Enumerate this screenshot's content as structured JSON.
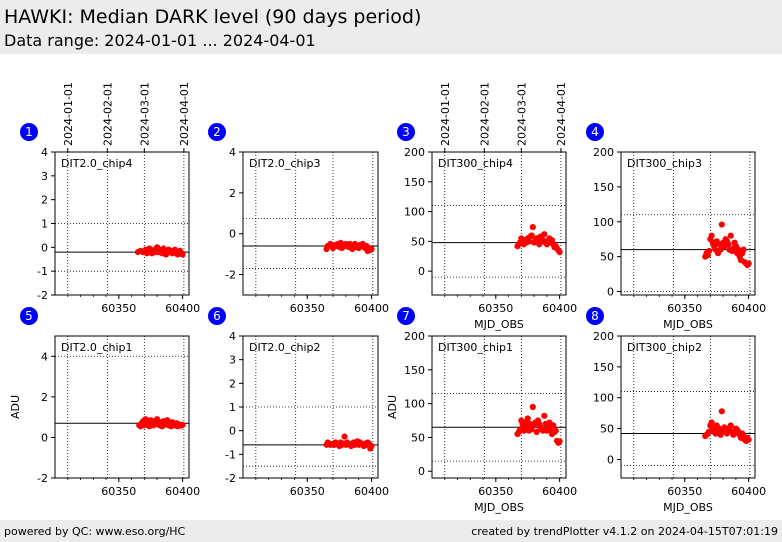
{
  "header": {
    "title": "HAWKI: Median DARK level (90 days period)",
    "subtitle": "Data range: 2024-01-01 ... 2024-04-01"
  },
  "footer": {
    "left": "powered by QC: www.eso.org/HC",
    "right": "created by trendPlotter v4.1.2 on 2024-04-15T07:01:19"
  },
  "date_ticks": {
    "labels": [
      "2024-01-01",
      "2024-02-01",
      "2024-03-01",
      "2024-04-01"
    ],
    "mjd": [
      60310,
      60341,
      60370,
      60401
    ]
  },
  "colors": {
    "marker": "#ff0000",
    "badge": "#0000ff",
    "ref_line": "#000000"
  },
  "chart_data": [
    {
      "type": "scatter",
      "index": "1",
      "label": "DIT2.0_chip4",
      "xlim": [
        60300,
        60405
      ],
      "ylim": [
        -2,
        4
      ],
      "yticks": [
        -2,
        -1,
        0,
        1,
        2,
        3,
        4
      ],
      "xticks": [
        60350,
        60400
      ],
      "ref": -0.2,
      "upper": 1.0,
      "lower": -1.0,
      "xlabel": "",
      "ylabel": "",
      "show_dates": true,
      "x": [
        60365,
        60367,
        60369,
        60371,
        60372,
        60373,
        60374,
        60375,
        60376,
        60377,
        60378,
        60379,
        60380,
        60381,
        60382,
        60383,
        60384,
        60385,
        60386,
        60387,
        60388,
        60389,
        60390,
        60391,
        60392,
        60393,
        60394,
        60395,
        60396,
        60397,
        60398,
        60399,
        60400
      ],
      "y": [
        -0.2,
        -0.15,
        -0.2,
        -0.1,
        -0.25,
        -0.15,
        -0.05,
        -0.2,
        -0.25,
        -0.2,
        -0.1,
        -0.2,
        0.0,
        -0.2,
        -0.1,
        -0.15,
        -0.25,
        -0.05,
        -0.2,
        -0.3,
        -0.15,
        -0.1,
        -0.2,
        -0.15,
        -0.25,
        -0.2,
        -0.1,
        -0.2,
        -0.3,
        -0.2,
        -0.15,
        -0.25,
        -0.3
      ]
    },
    {
      "type": "scatter",
      "index": "2",
      "label": "DIT2.0_chip3",
      "xlim": [
        60300,
        60405
      ],
      "ylim": [
        -3,
        4
      ],
      "yticks": [
        -2,
        0,
        2,
        4
      ],
      "xticks": [
        60350,
        60400
      ],
      "ref": -0.6,
      "upper": 0.75,
      "lower": -1.7,
      "xlabel": "",
      "ylabel": "",
      "show_dates": false,
      "x": [
        60365,
        60366,
        60368,
        60370,
        60372,
        60373,
        60374,
        60375,
        60376,
        60377,
        60378,
        60379,
        60380,
        60381,
        60382,
        60383,
        60384,
        60385,
        60386,
        60387,
        60388,
        60389,
        60390,
        60391,
        60392,
        60393,
        60394,
        60395,
        60396,
        60397,
        60398,
        60399,
        60400
      ],
      "y": [
        -0.75,
        -0.6,
        -0.5,
        -0.7,
        -0.55,
        -0.6,
        -0.5,
        -0.65,
        -0.45,
        -0.7,
        -0.55,
        -0.6,
        -0.5,
        -0.55,
        -0.65,
        -0.5,
        -0.6,
        -0.75,
        -0.55,
        -0.5,
        -0.65,
        -0.6,
        -0.7,
        -0.55,
        -0.6,
        -0.5,
        -0.65,
        -0.7,
        -0.6,
        -0.85,
        -0.7,
        -0.8,
        -0.75
      ]
    },
    {
      "type": "scatter",
      "index": "3",
      "label": "DIT300_chip4",
      "xlim": [
        60300,
        60405
      ],
      "ylim": [
        -40,
        200
      ],
      "yticks": [
        0,
        50,
        100,
        150,
        200
      ],
      "xticks": [
        60350,
        60400
      ],
      "ref": 48,
      "upper": 110,
      "lower": -10,
      "xlabel": "MJD_OBS",
      "ylabel": "",
      "show_dates": true,
      "x": [
        60367,
        60368,
        60369,
        60370,
        60371,
        60372,
        60373,
        60374,
        60375,
        60376,
        60377,
        60378,
        60379,
        60380,
        60381,
        60382,
        60383,
        60384,
        60385,
        60386,
        60387,
        60388,
        60389,
        60390,
        60391,
        60392,
        60393,
        60394,
        60395,
        60396,
        60397,
        60398,
        60399,
        60400
      ],
      "y": [
        42,
        45,
        48,
        55,
        50,
        45,
        52,
        48,
        55,
        50,
        58,
        60,
        74,
        48,
        52,
        55,
        50,
        45,
        58,
        50,
        52,
        62,
        48,
        45,
        50,
        55,
        48,
        52,
        45,
        40,
        42,
        38,
        35,
        32
      ]
    },
    {
      "type": "scatter",
      "index": "4",
      "label": "DIT300_chip3",
      "xlim": [
        60300,
        60405
      ],
      "ylim": [
        -5,
        200
      ],
      "yticks": [
        0,
        50,
        100,
        150,
        200
      ],
      "xticks": [
        60350,
        60400
      ],
      "ref": 60,
      "upper": 110,
      "lower": 0,
      "xlabel": "MJD_OBS",
      "ylabel": "",
      "show_dates": false,
      "x": [
        60366,
        60367,
        60368,
        60369,
        60370,
        60371,
        60372,
        60373,
        60374,
        60375,
        60376,
        60377,
        60378,
        60379,
        60380,
        60381,
        60382,
        60383,
        60384,
        60385,
        60386,
        60387,
        60388,
        60389,
        60390,
        60391,
        60392,
        60393,
        60394,
        60395,
        60396,
        60397,
        60398,
        60399,
        60400
      ],
      "y": [
        50,
        55,
        52,
        58,
        75,
        80,
        70,
        65,
        60,
        72,
        55,
        68,
        60,
        96,
        70,
        65,
        75,
        72,
        68,
        60,
        80,
        58,
        62,
        70,
        65,
        55,
        60,
        50,
        45,
        55,
        60,
        42,
        40,
        38,
        40
      ]
    },
    {
      "type": "scatter",
      "index": "5",
      "label": "DIT2.0_chip1",
      "xlim": [
        60300,
        60405
      ],
      "ylim": [
        -2,
        5
      ],
      "yticks": [
        -2,
        0,
        2,
        4
      ],
      "xticks": [
        60350,
        60400
      ],
      "ref": 0.7,
      "upper": 4.0,
      "lower": -2.0,
      "xlabel": "",
      "ylabel": "ADU",
      "show_dates": false,
      "x": [
        60366,
        60367,
        60368,
        60369,
        60370,
        60371,
        60372,
        60373,
        60374,
        60375,
        60376,
        60377,
        60378,
        60379,
        60380,
        60381,
        60382,
        60383,
        60384,
        60385,
        60386,
        60387,
        60388,
        60389,
        60390,
        60391,
        60392,
        60393,
        60394,
        60395,
        60396,
        60397,
        60398,
        60399,
        60400
      ],
      "y": [
        0.6,
        0.55,
        0.7,
        0.8,
        0.6,
        0.9,
        0.65,
        0.75,
        0.55,
        0.85,
        0.7,
        0.6,
        0.8,
        0.65,
        0.9,
        0.7,
        0.6,
        0.75,
        0.55,
        0.8,
        0.7,
        0.65,
        0.85,
        0.6,
        0.7,
        0.55,
        0.75,
        0.65,
        0.6,
        0.7,
        0.55,
        0.65,
        0.6,
        0.58,
        0.62
      ]
    },
    {
      "type": "scatter",
      "index": "6",
      "label": "DIT2.0_chip2",
      "xlim": [
        60300,
        60405
      ],
      "ylim": [
        -2,
        4
      ],
      "yticks": [
        -2,
        -1,
        0,
        1,
        2,
        3,
        4
      ],
      "xticks": [
        60350,
        60400
      ],
      "ref": -0.6,
      "upper": 1.0,
      "lower": -1.5,
      "xlabel": "",
      "ylabel": "",
      "show_dates": false,
      "x": [
        60365,
        60366,
        60367,
        60368,
        60370,
        60371,
        60372,
        60373,
        60374,
        60375,
        60376,
        60377,
        60378,
        60379,
        60380,
        60381,
        60382,
        60383,
        60384,
        60385,
        60386,
        60387,
        60388,
        60389,
        60390,
        60391,
        60392,
        60393,
        60394,
        60395,
        60396,
        60397,
        60398,
        60399,
        60400
      ],
      "y": [
        -0.6,
        -0.5,
        -0.55,
        -0.6,
        -0.55,
        -0.6,
        -0.5,
        -0.55,
        -0.6,
        -0.65,
        -0.5,
        -0.6,
        -0.55,
        -0.25,
        -0.6,
        -0.5,
        -0.55,
        -0.6,
        -0.65,
        -0.55,
        -0.5,
        -0.6,
        -0.55,
        -0.45,
        -0.6,
        -0.5,
        -0.55,
        -0.6,
        -0.65,
        -0.55,
        -0.6,
        -0.5,
        -0.55,
        -0.75,
        -0.65
      ]
    },
    {
      "type": "scatter",
      "index": "7",
      "label": "DIT300_chip1",
      "xlim": [
        60300,
        60405
      ],
      "ylim": [
        -10,
        200
      ],
      "yticks": [
        0,
        50,
        100,
        150,
        200
      ],
      "xticks": [
        60350,
        60400
      ],
      "ref": 65,
      "upper": 115,
      "lower": 15,
      "xlabel": "MJD_OBS",
      "ylabel": "ADU",
      "show_dates": false,
      "x": [
        60367,
        60368,
        60369,
        60370,
        60371,
        60372,
        60373,
        60374,
        60375,
        60376,
        60377,
        60378,
        60379,
        60380,
        60381,
        60382,
        60383,
        60384,
        60385,
        60386,
        60387,
        60388,
        60389,
        60390,
        60391,
        60392,
        60393,
        60394,
        60395,
        60396,
        60397,
        60398,
        60399,
        60400
      ],
      "y": [
        55,
        58,
        62,
        75,
        70,
        60,
        72,
        65,
        78,
        60,
        70,
        62,
        95,
        68,
        72,
        58,
        75,
        70,
        65,
        62,
        60,
        82,
        70,
        60,
        65,
        72,
        60,
        55,
        68,
        58,
        60,
        45,
        42,
        44
      ]
    },
    {
      "type": "scatter",
      "index": "8",
      "label": "DIT300_chip2",
      "xlim": [
        60300,
        60405
      ],
      "ylim": [
        -30,
        200
      ],
      "yticks": [
        0,
        50,
        100,
        150,
        200
      ],
      "xticks": [
        60350,
        60400
      ],
      "ref": 42,
      "upper": 110,
      "lower": -10,
      "xlabel": "MJD_OBS",
      "ylabel": "",
      "show_dates": false,
      "x": [
        60366,
        60367,
        60368,
        60369,
        60370,
        60371,
        60372,
        60373,
        60374,
        60375,
        60376,
        60377,
        60378,
        60379,
        60380,
        60381,
        60382,
        60383,
        60384,
        60385,
        60386,
        60387,
        60388,
        60389,
        60390,
        60391,
        60392,
        60393,
        60394,
        60395,
        60396,
        60397,
        60398,
        60399,
        60400
      ],
      "y": [
        38,
        40,
        42,
        45,
        55,
        60,
        48,
        50,
        42,
        55,
        45,
        50,
        40,
        78,
        48,
        52,
        45,
        42,
        50,
        48,
        55,
        45,
        40,
        42,
        50,
        48,
        45,
        40,
        35,
        42,
        38,
        32,
        30,
        35,
        32
      ]
    }
  ]
}
